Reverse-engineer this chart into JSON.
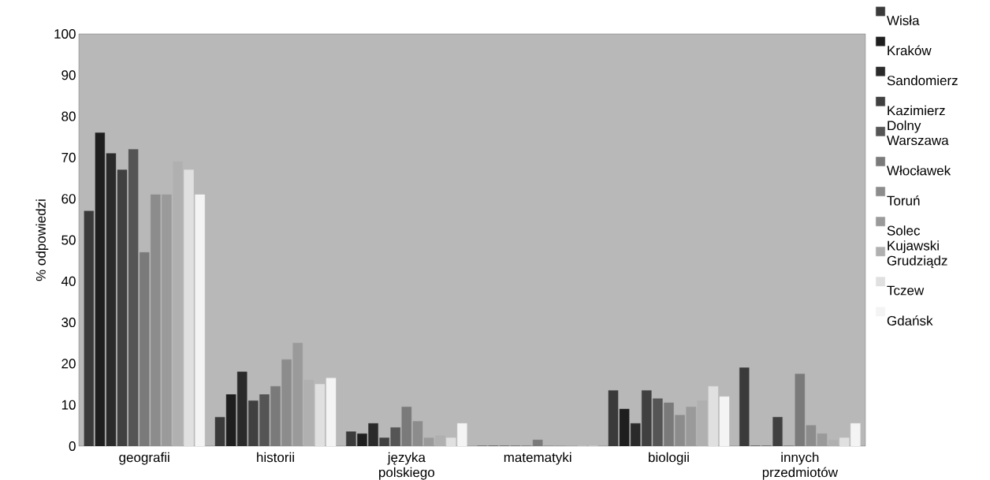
{
  "chart_data": {
    "type": "bar",
    "ylabel": "% odpowiedzi",
    "categories": [
      "geografii",
      "historii",
      "języka polskiego",
      "matematyki",
      "biologii",
      "innych przedmiotów"
    ],
    "series": [
      {
        "name": "Wisła",
        "color": "#3a3a3a",
        "values": [
          57,
          7,
          3.5,
          0,
          13.5,
          19
        ]
      },
      {
        "name": "Kraków",
        "color": "#1e1e1e",
        "values": [
          76,
          12.5,
          3,
          0,
          9,
          0
        ]
      },
      {
        "name": "Sandomierz",
        "color": "#2a2a2a",
        "values": [
          71,
          18,
          5.5,
          0,
          5.5,
          0
        ]
      },
      {
        "name": "Kazimierz Dolny",
        "color": "#404040",
        "values": [
          67,
          11,
          2,
          0,
          13.5,
          7
        ]
      },
      {
        "name": "Warszawa",
        "color": "#555555",
        "values": [
          72,
          12.5,
          4.5,
          0,
          11.5,
          0
        ]
      },
      {
        "name": "Włocławek",
        "color": "#7a7a7a",
        "values": [
          47,
          14.5,
          9.5,
          1.5,
          10.5,
          17.5
        ]
      },
      {
        "name": "Toruń",
        "color": "#8c8c8c",
        "values": [
          61,
          21,
          6,
          0,
          7.5,
          5
        ]
      },
      {
        "name": "Solec Kujawski",
        "color": "#9a9a9a",
        "values": [
          61,
          25,
          2,
          0,
          9.5,
          3
        ]
      },
      {
        "name": "Grudziądz",
        "color": "#b0b0b0",
        "values": [
          69,
          16,
          2.5,
          0,
          11,
          1.5
        ]
      },
      {
        "name": "Tczew",
        "color": "#e0e0e0",
        "values": [
          67,
          15,
          2,
          0,
          14.5,
          2
        ]
      },
      {
        "name": "Gdańsk",
        "color": "#f4f4f4",
        "values": [
          61,
          16.5,
          5.5,
          0,
          12,
          5.5
        ]
      }
    ],
    "ylim": [
      0,
      100
    ],
    "yticks": [
      0,
      10,
      20,
      30,
      40,
      50,
      60,
      70,
      80,
      90,
      100
    ],
    "legend": "right",
    "grid": false
  }
}
